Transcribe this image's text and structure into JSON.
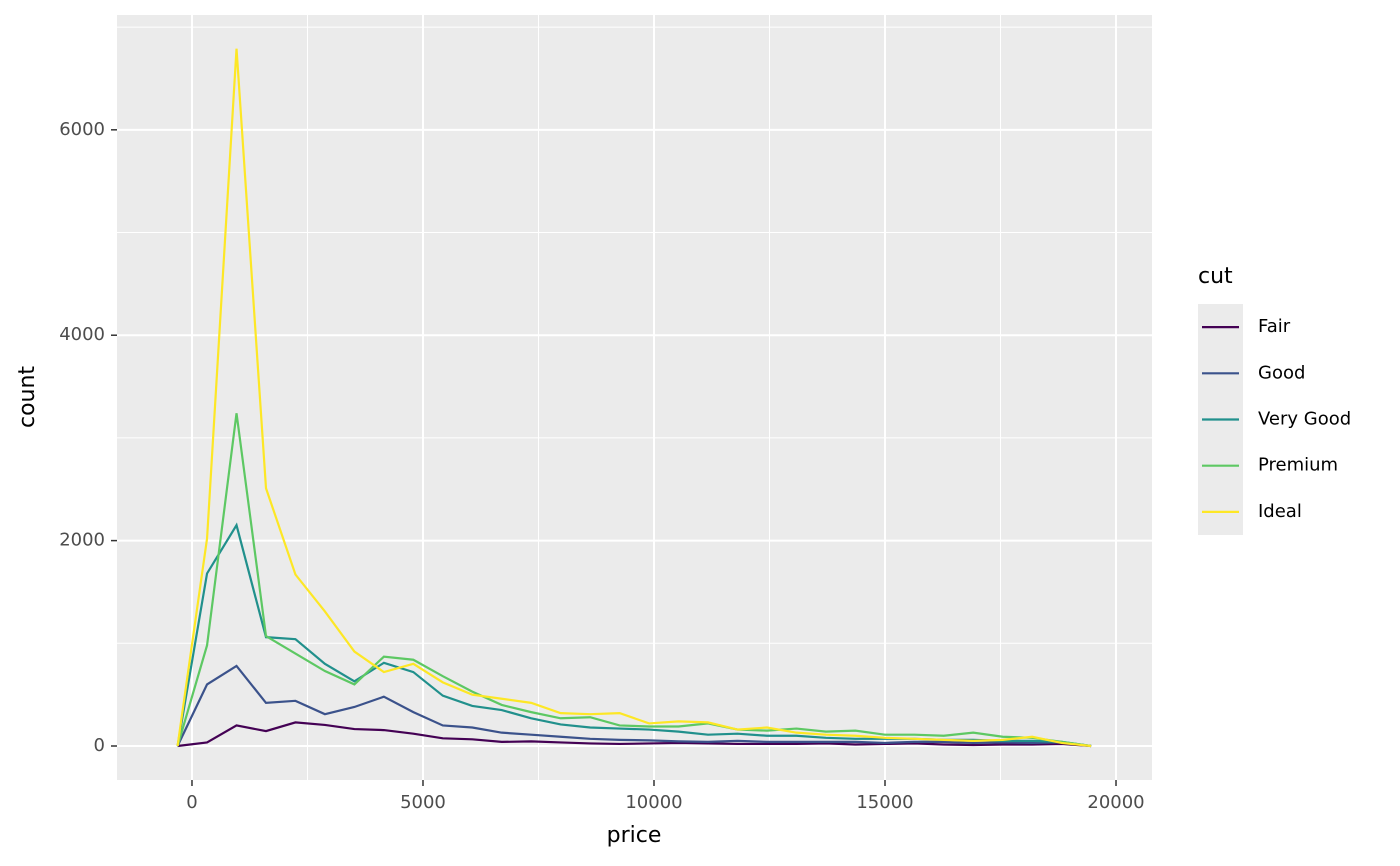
{
  "chart_data": {
    "type": "line",
    "x_label": "price",
    "y_label": "count",
    "x": [
      -312,
      326,
      964,
      1602,
      2239,
      2877,
      3515,
      4153,
      4791,
      5429,
      6067,
      6704,
      7342,
      7980,
      8618,
      9256,
      9894,
      10532,
      11169,
      11807,
      12445,
      13083,
      13721,
      14359,
      14997,
      15634,
      16272,
      16910,
      17548,
      18186,
      18824,
      19461
    ],
    "series": [
      {
        "name": "Fair",
        "color": "#440154",
        "values": [
          0,
          35,
          200,
          145,
          230,
          205,
          165,
          155,
          120,
          75,
          65,
          40,
          45,
          35,
          25,
          20,
          25,
          30,
          25,
          20,
          20,
          20,
          25,
          15,
          20,
          25,
          15,
          10,
          15,
          15,
          20,
          0
        ]
      },
      {
        "name": "Good",
        "color": "#3B528B",
        "values": [
          0,
          600,
          780,
          420,
          440,
          310,
          380,
          480,
          330,
          200,
          180,
          130,
          110,
          90,
          70,
          60,
          55,
          45,
          40,
          50,
          40,
          40,
          40,
          40,
          30,
          40,
          40,
          30,
          35,
          30,
          35,
          0
        ]
      },
      {
        "name": "Very Good",
        "color": "#21908C",
        "values": [
          0,
          1680,
          2150,
          1060,
          1040,
          800,
          630,
          810,
          720,
          490,
          390,
          350,
          270,
          210,
          180,
          170,
          160,
          140,
          110,
          120,
          100,
          100,
          80,
          70,
          70,
          70,
          60,
          60,
          50,
          50,
          40,
          0
        ]
      },
      {
        "name": "Premium",
        "color": "#5DC863",
        "values": [
          0,
          980,
          3240,
          1070,
          900,
          730,
          600,
          870,
          840,
          680,
          530,
          400,
          330,
          270,
          280,
          200,
          190,
          190,
          220,
          160,
          150,
          170,
          140,
          150,
          110,
          110,
          100,
          130,
          90,
          80,
          40,
          0
        ]
      },
      {
        "name": "Ideal",
        "color": "#FDE725",
        "values": [
          0,
          2020,
          6790,
          2510,
          1670,
          1310,
          920,
          720,
          800,
          620,
          500,
          460,
          420,
          320,
          310,
          320,
          220,
          240,
          230,
          160,
          180,
          130,
          110,
          100,
          80,
          70,
          60,
          50,
          60,
          90,
          30,
          0
        ]
      }
    ],
    "legend_title": "cut",
    "xlim": [
      -1623,
      20779
    ],
    "xticks": [
      0,
      5000,
      10000,
      15000,
      20000
    ],
    "ylim": [
      -331,
      7118
    ],
    "yticks": [
      0,
      2000,
      4000,
      6000
    ],
    "grid": true,
    "legend": "right"
  }
}
